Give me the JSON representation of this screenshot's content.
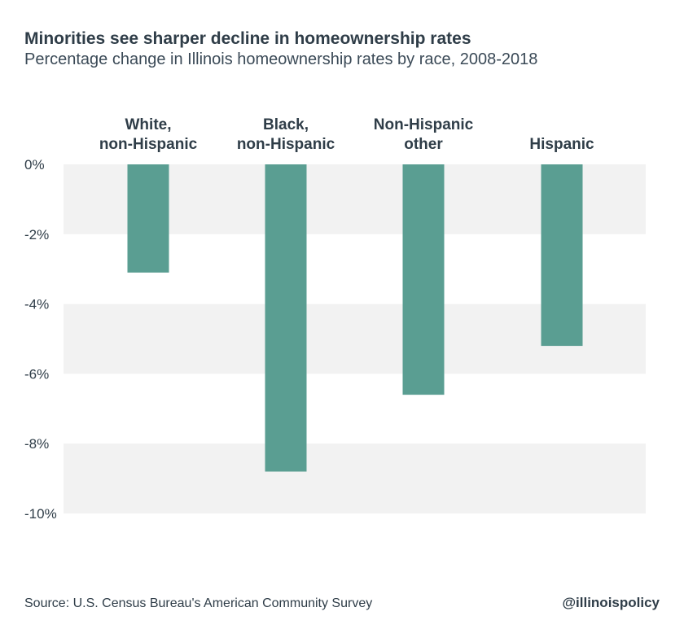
{
  "title": "Minorities see sharper decline in homeownership rates",
  "subtitle": "Percentage change in Illinois homeownership rates by race, 2008-2018",
  "source": "Source: U.S. Census Bureau's American Community Survey",
  "handle": "@illinoispolicy",
  "colors": {
    "bar": "#5a9e92",
    "band": "#f2f2f2",
    "text": "#2f3d48"
  },
  "chart_data": {
    "type": "bar",
    "categories": [
      [
        "White,",
        "non-Hispanic"
      ],
      [
        "Black,",
        "non-Hispanic"
      ],
      [
        "Non-Hispanic",
        "other"
      ],
      [
        "Hispanic"
      ]
    ],
    "values": [
      -3.1,
      -8.8,
      -6.6,
      -5.2
    ],
    "ylim": [
      -10,
      0
    ],
    "yticks": [
      0,
      -2,
      -4,
      -6,
      -8,
      -10
    ],
    "ytick_labels": [
      "0%",
      "-2%",
      "-4%",
      "-6%",
      "-8%",
      "-10%"
    ],
    "grid": "alternating horizontal bands",
    "xlabel": "",
    "ylabel": ""
  }
}
